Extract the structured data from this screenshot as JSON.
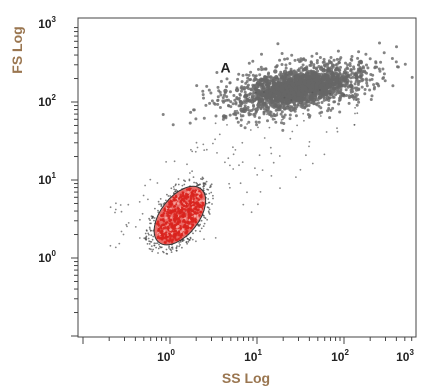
{
  "chart_data": {
    "type": "scatter",
    "xlabel": "SS Log",
    "ylabel": "FS Log",
    "x_scale": "log",
    "y_scale": "log",
    "xlim": [
      0.1,
      1000
    ],
    "ylim": [
      0.1,
      1000
    ],
    "x_ticks": [
      {
        "base": "10",
        "exp": "0",
        "value": 1
      },
      {
        "base": "10",
        "exp": "1",
        "value": 10
      },
      {
        "base": "10",
        "exp": "2",
        "value": 100
      },
      {
        "base": "10",
        "exp": "3",
        "value": 1000
      }
    ],
    "y_ticks": [
      {
        "base": "10",
        "exp": "0",
        "value": 1
      },
      {
        "base": "10",
        "exp": "1",
        "value": 10
      },
      {
        "base": "10",
        "exp": "2",
        "value": 100
      },
      {
        "base": "10",
        "exp": "3",
        "value": 1000
      }
    ],
    "grid": false,
    "populations": [
      {
        "label": "A",
        "color": "#6e6e6e",
        "center": [
          30,
          150
        ],
        "x_range": [
          3,
          100
        ],
        "y_range": [
          80,
          300
        ]
      },
      {
        "label": "",
        "color": "#e23b35",
        "gated": true,
        "center": [
          1.3,
          3.5
        ],
        "x_range": [
          0.8,
          2.6
        ],
        "y_range": [
          1.5,
          9
        ]
      }
    ]
  }
}
